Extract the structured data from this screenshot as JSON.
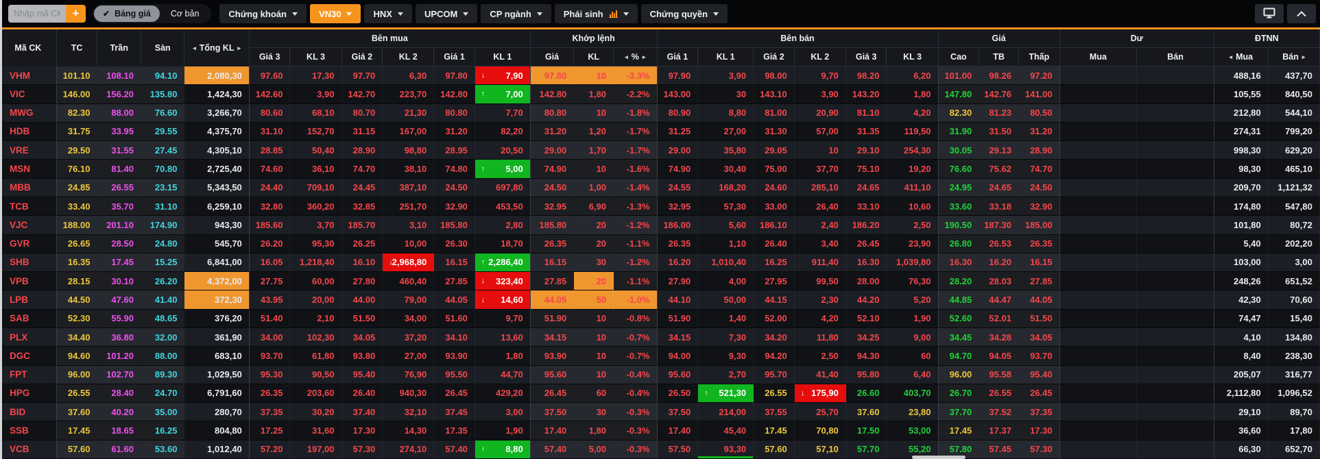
{
  "colors": {
    "accent_orange": "#f7941e",
    "down_red": "#f4464b",
    "up_green": "#23d13a",
    "reference_yellow": "#eec83b",
    "ceiling_magenta": "#ec52ec",
    "floor_cyan": "#41d5e0",
    "flash_orange_bg": "#f0962f",
    "flash_red_bg": "#e60d0d",
    "flash_green_bg": "#10b51f"
  },
  "topbar": {
    "search_placeholder": "Nhập mã CK...",
    "add_button": "+",
    "board_toggle": "Bảng giá",
    "basic_label": "Cơ bản",
    "tabs": [
      {
        "label": "Chứng khoán",
        "caret": true,
        "active": false,
        "chart_icon": false
      },
      {
        "label": "VN30",
        "caret": true,
        "active": true,
        "chart_icon": false
      },
      {
        "label": "HNX",
        "caret": true,
        "active": false,
        "chart_icon": false
      },
      {
        "label": "UPCOM",
        "caret": true,
        "active": false,
        "chart_icon": false
      },
      {
        "label": "CP ngành",
        "caret": true,
        "active": false,
        "chart_icon": false
      },
      {
        "label": "Phái sinh",
        "caret": true,
        "active": false,
        "chart_icon": true
      },
      {
        "label": "Chứng quyền",
        "caret": true,
        "active": false,
        "chart_icon": false
      }
    ],
    "right_icons": [
      "monitor-icon",
      "chevron-up-icon"
    ]
  },
  "table": {
    "columns_single": [
      "Mã CK",
      "TC",
      "Trần",
      "Sàn",
      "Tổng KL"
    ],
    "groups": [
      {
        "label": "Bên mua",
        "span": 6
      },
      {
        "label": "Khớp lệnh",
        "span": 3
      },
      {
        "label": "Bên bán",
        "span": 6
      },
      {
        "label": "Giá",
        "span": 3
      },
      {
        "label": "Dư",
        "span": 2
      },
      {
        "label": "ĐTNN",
        "span": 2
      }
    ],
    "sub_columns": [
      "Giá 3",
      "KL 3",
      "Giá 2",
      "KL 2",
      "Giá 1",
      "KL 1",
      "Giá",
      "KL",
      "%",
      "Giá 1",
      "KL 1",
      "Giá 2",
      "KL 2",
      "Giá 3",
      "KL 3",
      "Cao",
      "TB",
      "Thấp",
      "Mua",
      "Bán",
      "Mua",
      "Bán"
    ],
    "rows": [
      {
        "code": "VHM",
        "cells": [
          "101.10",
          "108.10",
          "94.10",
          {
            "v": "2,080,30",
            "f": "o"
          },
          "97.60",
          "17,30",
          "97.70",
          "6,30",
          "97.80",
          {
            "v": "7,90",
            "f": "r"
          },
          {
            "v": "97.80",
            "f": "o"
          },
          {
            "v": "10",
            "f": "o"
          },
          {
            "v": "-3.3%",
            "f": "o"
          },
          "97.90",
          "3,90",
          "98.00",
          "9,70",
          "98.20",
          "6,20",
          "101.00",
          "98.26",
          "97.20",
          "",
          "",
          "488,16",
          "437,70"
        ]
      },
      {
        "code": "VIC",
        "cells": [
          "146.00",
          "156.20",
          "135.80",
          "1,424,30",
          "142.60",
          "3,90",
          "142.70",
          "223,70",
          "142.80",
          {
            "v": "7,00",
            "f": "g"
          },
          "142.80",
          "1,80",
          "-2.2%",
          "143.00",
          "30",
          "143.10",
          "3,90",
          "143.20",
          "1,80",
          {
            "v": "147.80",
            "c": "g"
          },
          "142.76",
          "141.00",
          "",
          "",
          "105,55",
          "840,50"
        ]
      },
      {
        "code": "MWG",
        "cells": [
          "82.30",
          "88.00",
          "76.60",
          "3,266,70",
          "80.60",
          "68,10",
          "80.70",
          "21,30",
          "80.80",
          "7,70",
          "80.80",
          "10",
          "-1.8%",
          "80.90",
          "8,80",
          "81.00",
          "20,90",
          "81.10",
          "4,20",
          {
            "v": "82.30",
            "c": "y"
          },
          "81.23",
          "80.50",
          "",
          "",
          "212,80",
          "544,10"
        ]
      },
      {
        "code": "HDB",
        "cells": [
          "31.75",
          "33.95",
          "29.55",
          "4,375,70",
          "31.10",
          "152,70",
          "31.15",
          "167,00",
          "31.20",
          "82,20",
          "31.20",
          "1,20",
          "-1.7%",
          "31.25",
          "27,00",
          "31.30",
          "57,00",
          "31.35",
          "119,50",
          {
            "v": "31.90",
            "c": "g"
          },
          "31.50",
          "31.20",
          "",
          "",
          "274,31",
          "799,20"
        ]
      },
      {
        "code": "VRE",
        "cells": [
          "29.50",
          "31.55",
          "27.45",
          "4,305,10",
          "28.85",
          "50,40",
          "28.90",
          "98,80",
          "28.95",
          "20,50",
          "29.00",
          "1,70",
          "-1.7%",
          "29.00",
          "35,80",
          "29.05",
          "10",
          "29.10",
          "254,30",
          {
            "v": "30.05",
            "c": "g"
          },
          "29.13",
          "28.90",
          "",
          "",
          "998,30",
          "629,20"
        ]
      },
      {
        "code": "MSN",
        "cells": [
          "76.10",
          "81.40",
          "70.80",
          "2,725,40",
          "74.60",
          "36,10",
          "74.70",
          "38,10",
          "74.80",
          {
            "v": "5,00",
            "f": "g"
          },
          "74.90",
          "10",
          "-1.6%",
          "74.90",
          "30,40",
          "75.00",
          "37,70",
          "75.10",
          "19,20",
          {
            "v": "76.60",
            "c": "g"
          },
          "75.62",
          "74.70",
          "",
          "",
          "98,30",
          "465,10"
        ]
      },
      {
        "code": "MBB",
        "cells": [
          "24.85",
          "26.55",
          "23.15",
          "5,343,50",
          "24.40",
          "709,10",
          "24.45",
          "387,10",
          "24.50",
          "697,80",
          "24.50",
          "1,00",
          "-1.4%",
          "24.55",
          "168,20",
          "24.60",
          "285,10",
          "24.65",
          "411,10",
          {
            "v": "24.95",
            "c": "g"
          },
          "24.65",
          "24.50",
          "",
          "",
          "209,70",
          "1,121,32"
        ]
      },
      {
        "code": "TCB",
        "cells": [
          "33.40",
          "35.70",
          "31.10",
          "6,259,10",
          "32.80",
          "360,20",
          "32.85",
          "251,70",
          "32.90",
          "453,50",
          "32.95",
          "6,90",
          "-1.3%",
          "32.95",
          "57,30",
          "33.00",
          "26,40",
          "33.10",
          "10,60",
          {
            "v": "33.60",
            "c": "g"
          },
          "33.18",
          "32.90",
          "",
          "",
          "174,80",
          "547,80"
        ]
      },
      {
        "code": "VJC",
        "cells": [
          "188.00",
          "201.10",
          "174.90",
          "943,30",
          "185.60",
          "3,70",
          "185.70",
          "3,10",
          "185.80",
          "2,80",
          "185.80",
          "20",
          "-1.2%",
          "186.00",
          "5,60",
          "186.10",
          "2,40",
          "186.20",
          "2,50",
          {
            "v": "190.50",
            "c": "g"
          },
          "187.30",
          "185.00",
          "",
          "",
          "101,80",
          "80,72"
        ]
      },
      {
        "code": "GVR",
        "cells": [
          "26.65",
          "28.50",
          "24.80",
          "545,70",
          "26.20",
          "95,30",
          "26.25",
          "10,00",
          "26.30",
          "18,70",
          "26.35",
          "20",
          "-1.1%",
          "26.35",
          "1,10",
          "26.40",
          "3,40",
          "26.45",
          "23,90",
          {
            "v": "26.80",
            "c": "g"
          },
          "26.53",
          "26.35",
          "",
          "",
          "5,40",
          "202,20"
        ]
      },
      {
        "code": "SHB",
        "cells": [
          "16.35",
          "17.45",
          "15.25",
          "6,841,00",
          "16.05",
          "1,218,40",
          "16.10",
          {
            "v": "2,968,80",
            "f": "r"
          },
          "16.15",
          {
            "v": "2,286,40",
            "f": "g"
          },
          "16.15",
          "30",
          "-1.2%",
          "16.20",
          "1,010,40",
          "16.25",
          "911,40",
          "16.30",
          "1,039,80",
          "16.30",
          "16.20",
          "16.15",
          "",
          "",
          "103,00",
          "3,00"
        ]
      },
      {
        "code": "VPB",
        "cells": [
          "28.15",
          "30.10",
          "26.20",
          {
            "v": "4,372,00",
            "f": "o"
          },
          "27.75",
          "60,00",
          "27.80",
          "460,40",
          "27.85",
          {
            "v": "323,40",
            "f": "r"
          },
          "27.85",
          {
            "v": "20",
            "f": "o"
          },
          "-1.1%",
          "27.90",
          "4,00",
          "27.95",
          "99,50",
          "28.00",
          "76,30",
          {
            "v": "28.20",
            "c": "g"
          },
          "28.03",
          "27.85",
          "",
          "",
          "248,26",
          "651,52"
        ]
      },
      {
        "code": "LPB",
        "cells": [
          "44.50",
          "47.60",
          "41.40",
          {
            "v": "372,30",
            "f": "o"
          },
          "43.95",
          "20,00",
          "44.00",
          "79,00",
          "44.05",
          {
            "v": "14,60",
            "f": "r"
          },
          {
            "v": "44.05",
            "f": "o"
          },
          {
            "v": "50",
            "f": "o"
          },
          {
            "v": "-1.0%",
            "f": "o"
          },
          "44.10",
          "50,00",
          "44.15",
          "2,30",
          "44.20",
          "5,20",
          {
            "v": "44.85",
            "c": "g"
          },
          "44.47",
          "44.05",
          "",
          "",
          "42,30",
          "70,60"
        ]
      },
      {
        "code": "SAB",
        "cells": [
          "52.30",
          "55.90",
          "48.65",
          "376,20",
          "51.40",
          "2,10",
          "51.50",
          "34,00",
          "51.60",
          "9,70",
          "51.90",
          "10",
          "-0.8%",
          "51.90",
          "1,40",
          "52.00",
          "4,20",
          "52.10",
          "1,90",
          {
            "v": "52.60",
            "c": "g"
          },
          "52.01",
          "51.50",
          "",
          "",
          "74,47",
          "15,40"
        ]
      },
      {
        "code": "PLX",
        "cells": [
          "34.40",
          "36.80",
          "32.00",
          "361,90",
          "34.00",
          "102,30",
          "34.05",
          "37,20",
          "34.10",
          "13,60",
          "34.15",
          "10",
          "-0.7%",
          "34.15",
          "7,30",
          "34.20",
          "11,80",
          "34.25",
          "9,00",
          {
            "v": "34.45",
            "c": "g"
          },
          "34.28",
          "34.05",
          "",
          "",
          "4,10",
          "134,80"
        ]
      },
      {
        "code": "DGC",
        "cells": [
          "94.60",
          "101.20",
          "88.00",
          "683,10",
          "93.70",
          "61,80",
          "93.80",
          "27,00",
          "93.90",
          "1,80",
          "93.90",
          "10",
          "-0.7%",
          "94.00",
          "9,30",
          "94.20",
          "2,50",
          "94.30",
          "60",
          {
            "v": "94.70",
            "c": "g"
          },
          "94.05",
          "93.70",
          "",
          "",
          "8,40",
          "238,30"
        ]
      },
      {
        "code": "FPT",
        "cells": [
          "96.00",
          "102.70",
          "89.30",
          "1,029,50",
          "95.30",
          "90,50",
          "95.40",
          "76,90",
          "95.50",
          "44,70",
          "95.60",
          "10",
          "-0.4%",
          "95.60",
          "2,70",
          "95.70",
          "41,40",
          "95.80",
          "6,40",
          {
            "v": "96.00",
            "c": "y"
          },
          "95.58",
          "95.40",
          "",
          "",
          "205,07",
          "316,77"
        ]
      },
      {
        "code": "HPG",
        "cells": [
          "26.55",
          "28.40",
          "24.70",
          "6,791,60",
          "26.35",
          "203,60",
          "26.40",
          "940,30",
          "26.45",
          "429,20",
          "26.45",
          "60",
          "-0.4%",
          "26.50",
          {
            "v": "521,30",
            "f": "g"
          },
          {
            "v": "26.55",
            "c": "y"
          },
          {
            "v": "175,90",
            "f": "r"
          },
          {
            "v": "26.60",
            "c": "g"
          },
          {
            "v": "403,70",
            "c": "g"
          },
          {
            "v": "26.70",
            "c": "g"
          },
          "26.55",
          "26.45",
          "",
          "",
          "2,112,80",
          "1,096,52"
        ]
      },
      {
        "code": "BID",
        "cells": [
          "37.60",
          "40.20",
          "35.00",
          "280,70",
          "37.35",
          "30,20",
          "37.40",
          "32,10",
          "37.45",
          "3,00",
          "37.50",
          "30",
          "-0.3%",
          "37.50",
          "214,00",
          "37.55",
          "25,70",
          {
            "v": "37.60",
            "c": "y"
          },
          {
            "v": "23,80",
            "c": "y"
          },
          {
            "v": "37.70",
            "c": "g"
          },
          "37.52",
          "37.35",
          "",
          "",
          "29,10",
          "89,70"
        ]
      },
      {
        "code": "SSB",
        "cells": [
          "17.45",
          "18.65",
          "16.25",
          "804,80",
          "17.25",
          "31,60",
          "17.30",
          "14,30",
          "17.35",
          "1,90",
          "17.40",
          "1,80",
          "-0.3%",
          "17.40",
          "45,40",
          {
            "v": "17.45",
            "c": "y"
          },
          {
            "v": "70,80",
            "c": "y"
          },
          {
            "v": "17.50",
            "c": "g"
          },
          {
            "v": "53,00",
            "c": "g"
          },
          {
            "v": "17.45",
            "c": "y"
          },
          "17.37",
          "17.30",
          "",
          "",
          "36,60",
          "17,80"
        ]
      },
      {
        "code": "VCB",
        "cells": [
          "57.60",
          "61.60",
          "53.60",
          "1,012,40",
          "57.20",
          "197,00",
          "57.30",
          "274,10",
          "57.40",
          {
            "v": "8,80",
            "f": "g"
          },
          "57.40",
          "5,00",
          "-0.3%",
          "57.50",
          {
            "v": "93,30",
            "f": "u"
          },
          {
            "v": "57.60",
            "c": "y"
          },
          {
            "v": "57,10",
            "c": "y"
          },
          {
            "v": "57.70",
            "c": "g"
          },
          {
            "v": "55,20",
            "c": "g"
          },
          {
            "v": "57.80",
            "c": "g"
          },
          "57.45",
          "57.30",
          "",
          "",
          "66,30",
          "652,70"
        ]
      }
    ]
  }
}
